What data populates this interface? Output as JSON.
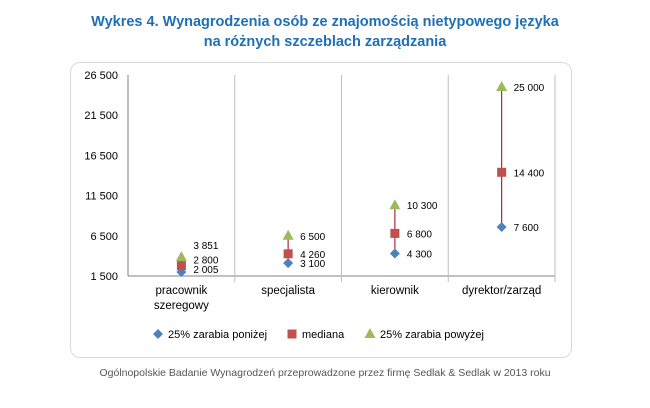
{
  "title": {
    "line1": "Wykres 4. Wynagrodzenia osób ze znajomością nietypowego języka",
    "line2": "na różnych szczeblach zarządzania"
  },
  "source": "Ogólnopolskie Badanie Wynagrodzeń przeprowadzone przez firmę Sedlak & Sedlak w 2013 roku",
  "colors": {
    "title": "#1f6fb5",
    "p25": "#4f81bd",
    "median": "#c0504d",
    "p75": "#9bbb59",
    "range_line": "#b02a3a"
  },
  "chart_data": {
    "type": "scatter",
    "categories": [
      "pracownik szeregowy",
      "specjalista",
      "kierownik",
      "dyrektor/zarząd"
    ],
    "category_lines": [
      [
        "pracownik",
        "szeregowy"
      ],
      [
        "specjalista"
      ],
      [
        "kierownik"
      ],
      [
        "dyrektor/zarząd"
      ]
    ],
    "series": [
      {
        "name": "25% zarabia poniżej",
        "marker": "diamond",
        "values": [
          2005,
          3100,
          4300,
          7600
        ],
        "labels": [
          "2 005",
          "3 100",
          "4 300",
          "7 600"
        ]
      },
      {
        "name": "mediana",
        "marker": "square",
        "values": [
          2800,
          4260,
          6800,
          14400
        ],
        "labels": [
          "2 800",
          "4 260",
          "6 800",
          "14 400"
        ]
      },
      {
        "name": "25% zarabia powyżej",
        "marker": "triangle",
        "values": [
          3851,
          6500,
          10300,
          25000
        ],
        "labels": [
          "3 851",
          "6 500",
          "10 300",
          "25 000"
        ]
      }
    ],
    "yticks": [
      1500,
      6500,
      11500,
      16500,
      21500,
      26500
    ],
    "ytick_labels": [
      "1 500",
      "6 500",
      "11 500",
      "16 500",
      "21 500",
      "26 500"
    ],
    "ylim": [
      1500,
      26500
    ],
    "xlabel": "",
    "ylabel": "",
    "legend": "bottom",
    "grid": "vertical category separators"
  }
}
